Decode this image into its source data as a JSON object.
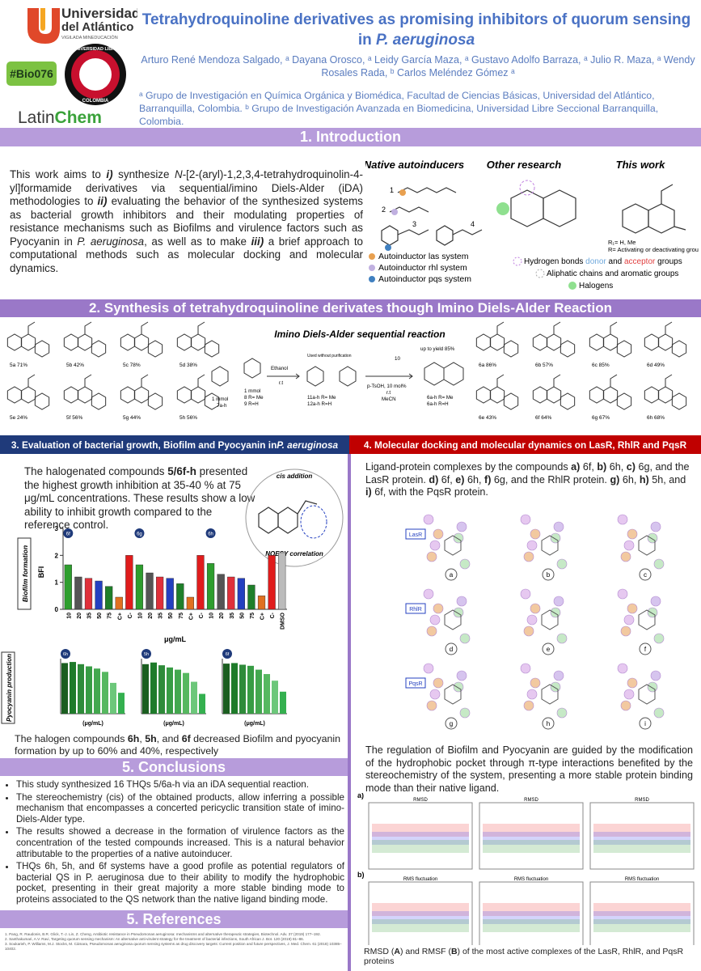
{
  "logos": {
    "university": "Universidad",
    "university_2": "del Atlántico",
    "university_sub": "VIGILADA MINEDUCACIÓN",
    "code": "#Bio076",
    "libre": "UNIVERSIDAD LIBRE",
    "libre_sub": "COLOMBIA",
    "latin": "Latin",
    "chem": "Chem"
  },
  "header": {
    "title": "Tetrahydroquinoline derivatives as promising inhibitors of quorum sensing",
    "title_2": "in ",
    "title_2_italic": "P. aeruginosa",
    "authors": "Arturo René Mendoza Salgado, ᵃ Dayana Orosco, ᵃ Leidy García Maza, ᵃ Gustavo Adolfo Barraza, ᵃ Julio R. Maza, ᵃ Wendy Rosales Rada, ᵇ Carlos Meléndez Gómez ᵃ",
    "affiliations": "ᵃ Grupo de Investigación en Química Orgánica y Biomédica, Facultad de Ciencias Básicas, Universidad del Atlántico, Barranquilla, Colombia. ᵇ Grupo de Investigación Avanzada en Biomedicina, Universidad Libre Seccional Barranquilla, Colombia."
  },
  "intro": {
    "heading": "1. Introduction",
    "text": [
      "This work aims to ",
      "i)",
      " synthesize ",
      "N",
      "-[2-(aryl)-1,2,3,4-tetrahydroquinolin-4-yl]formamide derivatives via sequential/imino Diels-Alder (iDA) methodologies to ",
      "ii)",
      " evaluating the behavior of the synthesized systems as bacterial growth inhibitors and their modulating properties of resistance mechanisms such as Biofilms and virulence factors such as Pyocyanin in ",
      "P. aeruginosa",
      ", as well as to make ",
      "iii)",
      " a brief approach to computational methods such as molecular docking and molecular dynamics."
    ],
    "figure": {
      "headings": [
        "Native autoinducers",
        "Other research",
        "This work"
      ],
      "numbers": [
        "1",
        "2",
        "3",
        "4"
      ],
      "legend": [
        "Autoinductor las system",
        "Autoinductor rhl system",
        "Autoinductor pqs system"
      ],
      "notes": [
        "R₁= H, Me",
        "R= Activating or deactivating groups"
      ],
      "hbond": [
        "Hydrogen bonds ",
        "donor",
        " and ",
        "acceptor",
        " groups"
      ],
      "aliphatic": "Aliphatic chains and aromatic groups",
      "halogens": "Halogens"
    }
  },
  "synthesis": {
    "heading": "2. Synthesis of tetrahydroquinoline derivates though Imino Diels-Alder Reaction",
    "scheme_title": "Imino Diels-Alder sequential reaction",
    "compounds_left": [
      "5a 71%",
      "5b 42%",
      "5c 78%",
      "5d 38%",
      "5e 24%",
      "5f 56%",
      "5g 44%",
      "5h 56%"
    ],
    "compounds_right": [
      "6a 86%",
      "6b 57%",
      "6c 85%",
      "6d 49%",
      "6e 43%",
      "6f 64%",
      "6g 67%",
      "6h 68%"
    ],
    "scheme_labels": [
      "1 mmol",
      "7a-h",
      "1 mmol",
      "8 R= Me",
      "9 R=H",
      "Ethanol",
      "r.t",
      "Used without purification",
      "11a-h R= Me",
      "12a-h R=H",
      "10",
      "p-TsOH, 10 mol%",
      "r.t",
      "MeCN",
      "up to yield 85%",
      "6a-h R= Me",
      "6a-h R=H"
    ]
  },
  "evaluation": {
    "heading": "3. Evaluation of bacterial growth, Biofilm and Pyocyanin in ",
    "heading_italic": "P. aeruginosa",
    "text": [
      "The halogenated compounds ",
      "5/6f-h",
      " presented the highest growth inhibition at 35-40 % at 75 μg/mL concentrations. These results show a low ability to inhibit growth compared to the reference control."
    ],
    "noesy": [
      "cis addition",
      "NOESY correlation"
    ],
    "result": [
      "The halogen compounds ",
      "6h",
      ", ",
      "5h",
      ", and ",
      "6f",
      " decreased Biofilm and pyocyanin formation by up to 60% and 40%, respectively"
    ]
  },
  "biofilm_chart": {
    "type": "bar",
    "title": "Biofilm formation",
    "ylabel": "BFI",
    "xlabel": "μg/mL",
    "groups": [
      "6f",
      "6g",
      "6h"
    ],
    "categories": [
      "10",
      "20",
      "35",
      "50",
      "75",
      "C+",
      "C-",
      "10",
      "20",
      "35",
      "50",
      "75",
      "C+",
      "C-",
      "10",
      "20",
      "35",
      "50",
      "75",
      "C+",
      "C-",
      "DMSO"
    ],
    "values": [
      1.65,
      1.2,
      1.15,
      1.05,
      0.85,
      0.45,
      2.0,
      1.65,
      1.35,
      1.2,
      1.15,
      0.95,
      0.45,
      2.0,
      1.7,
      1.3,
      1.2,
      1.15,
      0.9,
      0.5,
      2.0,
      2.1
    ],
    "colors": [
      "#2e9e2e",
      "#555555",
      "#e0303a",
      "#2440c0",
      "#1f7f2a",
      "#e07020",
      "#e01c1c",
      "#2e9e2e",
      "#555555",
      "#e0303a",
      "#2440c0",
      "#1f7f2a",
      "#e07020",
      "#e01c1c",
      "#2e9e2e",
      "#555555",
      "#e0303a",
      "#2440c0",
      "#1f7f2a",
      "#e07020",
      "#e01c1c",
      "#bbbbbb"
    ],
    "ylim": [
      0,
      3
    ],
    "yticks": [
      0,
      1,
      2,
      3
    ]
  },
  "pyocyanin_chart": {
    "type": "bar",
    "title": "Pyocyanin production",
    "xlabel": "(μg/mL)",
    "colors": [
      "#1b5e20",
      "#1e7b2a",
      "#2e8b3a",
      "#379c44",
      "#43a84f",
      "#56b860",
      "#6cc77a",
      "#34b04f"
    ],
    "ylim": [
      0,
      1
    ],
    "panels": [
      {
        "tag": "6h",
        "values": [
          0.92,
          0.94,
          0.9,
          0.86,
          0.82,
          0.76,
          0.56,
          0.38
        ]
      },
      {
        "tag": "5h",
        "values": [
          0.9,
          0.93,
          0.88,
          0.84,
          0.8,
          0.74,
          0.58,
          0.36
        ]
      },
      {
        "tag": "6f",
        "values": [
          0.91,
          0.92,
          0.89,
          0.87,
          0.8,
          0.72,
          0.6,
          0.4
        ]
      }
    ]
  },
  "docking": {
    "heading": "4. Molecular docking and molecular dynamics on LasR, RhlR and PqsR",
    "text": [
      "Ligand-protein complexes by the compounds ",
      "a)",
      " 6f, ",
      "b)",
      " 6h, ",
      "c)",
      " 6g, and the LasR protein. ",
      "d)",
      " 6f, ",
      "e)",
      " 6h, ",
      "f)",
      " 6g, and the RhlR protein. ",
      "g)",
      " 6h, ",
      "h)",
      " 5h, and ",
      "i)",
      " 6f, with the PqsR protein."
    ],
    "proteins": [
      "LasR",
      "RhlR",
      "PqsR"
    ],
    "panels": [
      "a",
      "b",
      "c",
      "d",
      "e",
      "f",
      "g",
      "h",
      "i"
    ],
    "text_2": "The regulation of Biofilm and Pyocyanin are guided by the modification of the hydrophobic pocket through π-type interactions benefited by the stereochemistry of the system, presenting a more stable protein binding mode than their native ligand.",
    "md_rows": [
      "a)",
      "b)"
    ],
    "md_titles": [
      "RMSD",
      "RMSD",
      "RMSD",
      "RMS fluctuation",
      "RMS fluctuation",
      "RMS fluctuation"
    ],
    "caption": [
      "RMSD (",
      "A",
      ") and RMSF (",
      "B",
      ") of the most active complexes of the LasR, RhlR, and PqsR proteins"
    ]
  },
  "conclusions": {
    "heading": "5. Conclusions",
    "items": [
      "This study synthesized 16 THQs 5/6a-h via an iDA sequential reaction.",
      "The stereochemistry (cis) of the obtained products, allow inferring a possible mechanism that encompasses a concerted pericyclic transition state of imino-Diels-Alder type.",
      "The results showed a decrease in the formation of virulence factors as the concentration of the tested compounds increased.  This is a natural behavior attributable to the properties of a native autoinducer.",
      "THQs 6h, 5h, and 6f systems have a good profile as potential regulators of bacterial QS in P. aeruginosa due to their ability to modify the hydrophobic pocket, presenting in their great majority a more stable binding mode to proteins associated to the QS network than the native ligand binding mode."
    ]
  },
  "references": {
    "heading": "5. References",
    "items": [
      "1. Pang, R. Raudonis, B.R. Glick, T.-J. Lin, Z. Cheng, Antibiotic resistance in Pseudomonas aeruginosa: mechanisms and alternative therapeutic strategies, Biotechnol. Adv. 37 (2019) 177–192.",
      "2. Santhakumari, A.V. Ravi, Targeting quorum sensing mechanism: An alternative anti-virulent strategy for the treatment of bacterial infections, South African J. Bot. 120 (2019) 81–86.",
      "3. Soukarieh, P. Williams, M.J. Stocks, M. Cámara, Pseudomonas aeruginosa quorum sensing systems as drug discovery targets: Current position and future perspectives, J. Med. Chem. 61 (2018) 10385–10402."
    ]
  }
}
